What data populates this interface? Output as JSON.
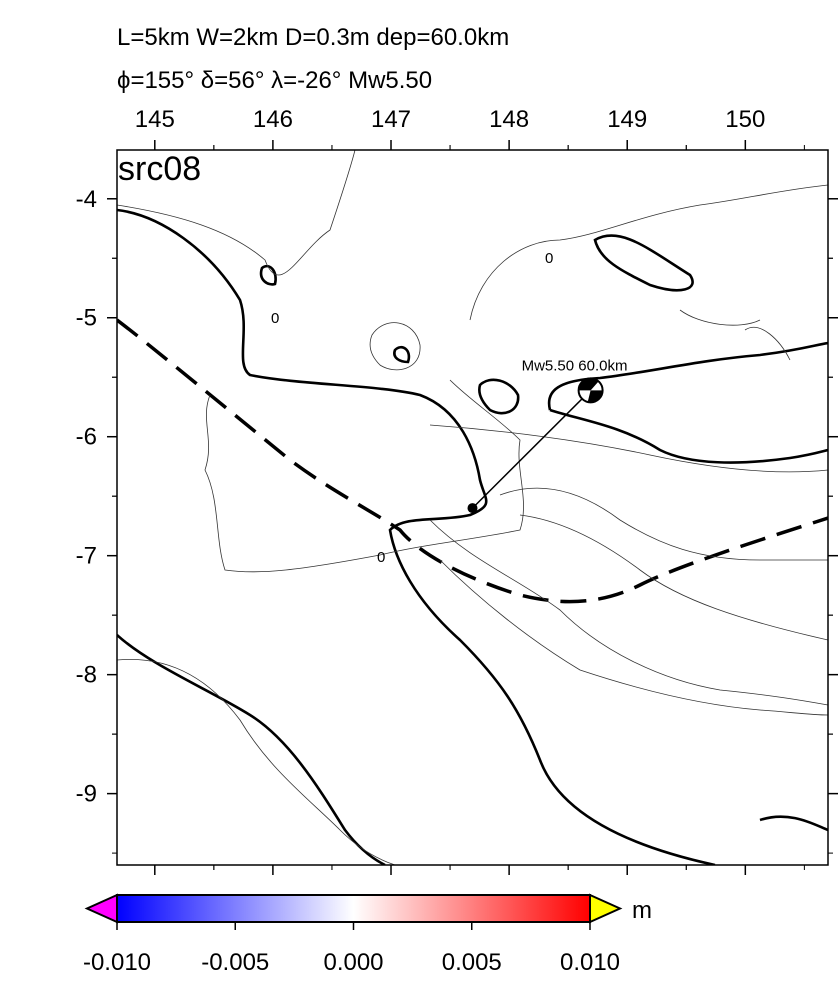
{
  "chart_data": {
    "type": "map",
    "title": "L=5km W=2km D=0.3m dep=60.0km",
    "subtitle": "ϕ=155° δ=56° λ=-26° Mw5.50",
    "panel_label": "src08",
    "xlim": [
      144.68,
      150.7
    ],
    "ylim": [
      -9.6,
      -3.59
    ],
    "xticks": [
      145,
      146,
      147,
      148,
      149,
      150
    ],
    "yticks": [
      -4,
      -5,
      -6,
      -7,
      -8,
      -9
    ],
    "epicenter": {
      "lon": 148.69,
      "lat": -5.61,
      "label": "Mw5.50  60.0km"
    },
    "fault_point": {
      "lon": 147.69,
      "lat": -6.6
    },
    "contour_label": "0",
    "colorbar": {
      "unit": "m",
      "lim": [
        -0.01,
        0.01
      ],
      "colors": [
        "#0000ff",
        "#ffffff",
        "#ff0000"
      ],
      "under_color": "#ff00ff",
      "over_color": "#ffff00",
      "ticks": [
        {
          "value": -0.01,
          "label": "-0.010"
        },
        {
          "value": -0.005,
          "label": "-0.005"
        },
        {
          "value": 0,
          "label": "0.000"
        },
        {
          "value": 0.005,
          "label": "0.005"
        },
        {
          "value": 0.01,
          "label": "0.010"
        }
      ]
    }
  }
}
